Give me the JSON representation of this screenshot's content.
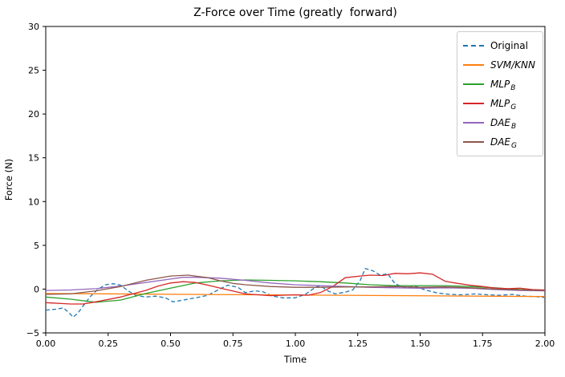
{
  "chart_data": {
    "type": "line",
    "title": "Z-Force over Time (greatly  forward)",
    "xlabel": "Time",
    "ylabel": "Force (N)",
    "xlim": [
      0,
      2
    ],
    "ylim": [
      -5,
      30
    ],
    "grid": false,
    "legend_position": "upper right",
    "xtick_values": [
      0,
      0.25,
      0.5,
      0.75,
      1.0,
      1.25,
      1.5,
      1.75,
      2.0
    ],
    "xtick_labels": [
      "0.00",
      "0.25",
      "0.50",
      "0.75",
      "1.00",
      "1.25",
      "1.50",
      "1.75",
      "2.00"
    ],
    "ytick_values": [
      -5,
      0,
      5,
      10,
      15,
      20,
      25,
      30
    ],
    "ytick_labels": [
      "−5",
      "0",
      "5",
      "10",
      "15",
      "20",
      "25",
      "30"
    ],
    "series": [
      {
        "name": "Original",
        "label": "Original",
        "sub": "",
        "italic": false,
        "color": "#1f77b4",
        "dash": true,
        "x": [
          0,
          0.04,
          0.07,
          0.09,
          0.11,
          0.13,
          0.15,
          0.18,
          0.21,
          0.24,
          0.27,
          0.3,
          0.33,
          0.36,
          0.4,
          0.44,
          0.48,
          0.51,
          0.55,
          0.6,
          0.65,
          0.7,
          0.73,
          0.77,
          0.8,
          0.84,
          0.87,
          0.91,
          0.95,
          1.0,
          1.04,
          1.08,
          1.1,
          1.13,
          1.16,
          1.2,
          1.23,
          1.26,
          1.28,
          1.31,
          1.34,
          1.37,
          1.4,
          1.44,
          1.48,
          1.52,
          1.57,
          1.62,
          1.67,
          1.72,
          1.77,
          1.82,
          1.87,
          1.92,
          1.96,
          2.0
        ],
        "y": [
          -2.4,
          -2.3,
          -2.15,
          -2.6,
          -3.2,
          -2.7,
          -1.9,
          -0.8,
          0.0,
          0.5,
          0.62,
          0.45,
          -0.2,
          -0.7,
          -0.9,
          -0.8,
          -1.0,
          -1.45,
          -1.25,
          -1.0,
          -0.7,
          0.05,
          0.45,
          0.2,
          -0.4,
          -0.2,
          -0.3,
          -0.8,
          -1.0,
          -1.0,
          -0.6,
          0.2,
          0.4,
          -0.2,
          -0.55,
          -0.35,
          -0.1,
          1.0,
          2.35,
          2.1,
          1.6,
          1.75,
          0.6,
          0.15,
          0.35,
          -0.1,
          -0.45,
          -0.6,
          -0.65,
          -0.55,
          -0.65,
          -0.7,
          -0.6,
          -0.8,
          -0.85,
          -0.95
        ]
      },
      {
        "name": "SVM/KNN",
        "label": "SVM/KNN",
        "sub": "",
        "italic": true,
        "color": "#ff7f0e",
        "dash": false,
        "x": [
          0,
          2
        ],
        "y": [
          -0.5,
          -0.85
        ]
      },
      {
        "name": "MLP_B",
        "label": "MLP",
        "sub": "B",
        "italic": true,
        "color": "#2ca02c",
        "dash": false,
        "x": [
          0,
          0.1,
          0.2,
          0.3,
          0.4,
          0.5,
          0.6,
          0.7,
          0.8,
          0.9,
          1.0,
          1.1,
          1.2,
          1.3,
          1.4,
          1.5,
          1.6,
          1.7,
          1.8,
          1.9,
          2.0
        ],
        "y": [
          -0.9,
          -1.15,
          -1.5,
          -1.25,
          -0.5,
          0.1,
          0.7,
          0.95,
          1.05,
          1.0,
          0.95,
          0.85,
          0.7,
          0.5,
          0.4,
          0.4,
          0.4,
          0.3,
          0.15,
          -0.05,
          -0.15
        ]
      },
      {
        "name": "MLP_G",
        "label": "MLP",
        "sub": "G",
        "italic": true,
        "color": "#d62728",
        "dash": false,
        "x": [
          0,
          0.1,
          0.15,
          0.2,
          0.3,
          0.4,
          0.45,
          0.5,
          0.55,
          0.6,
          0.65,
          0.7,
          0.8,
          0.9,
          1.0,
          1.05,
          1.1,
          1.15,
          1.2,
          1.26,
          1.3,
          1.35,
          1.4,
          1.45,
          1.5,
          1.55,
          1.6,
          1.65,
          1.7,
          1.75,
          1.8,
          1.85,
          1.9,
          1.95,
          2.0
        ],
        "y": [
          -1.55,
          -1.7,
          -1.7,
          -1.45,
          -0.9,
          -0.15,
          0.35,
          0.7,
          0.85,
          0.75,
          0.45,
          0.1,
          -0.55,
          -0.75,
          -0.65,
          -0.7,
          -0.4,
          0.3,
          1.3,
          1.5,
          1.6,
          1.55,
          1.8,
          1.75,
          1.85,
          1.7,
          0.9,
          0.65,
          0.45,
          0.3,
          0.12,
          0.05,
          0.1,
          -0.05,
          -0.1
        ]
      },
      {
        "name": "DAE_B",
        "label": "DAE",
        "sub": "B",
        "italic": true,
        "color": "#9467bd",
        "dash": false,
        "x": [
          0,
          0.1,
          0.2,
          0.3,
          0.4,
          0.5,
          0.55,
          0.6,
          0.7,
          0.8,
          0.9,
          1.0,
          1.1,
          1.2,
          1.3,
          1.4,
          1.5,
          1.6,
          1.7,
          1.8,
          1.9,
          2.0
        ],
        "y": [
          -0.15,
          -0.1,
          0.05,
          0.35,
          0.75,
          1.15,
          1.35,
          1.35,
          1.25,
          1.0,
          0.7,
          0.5,
          0.4,
          0.3,
          0.2,
          0.15,
          0.1,
          0.15,
          0.1,
          -0.05,
          -0.15,
          -0.2
        ]
      },
      {
        "name": "DAE_G",
        "label": "DAE",
        "sub": "G",
        "italic": true,
        "color": "#8c564b",
        "dash": false,
        "x": [
          0,
          0.1,
          0.2,
          0.3,
          0.4,
          0.5,
          0.57,
          0.65,
          0.7,
          0.75,
          0.8,
          0.9,
          1.0,
          1.1,
          1.2,
          1.3,
          1.4,
          1.5,
          1.6,
          1.7,
          1.8,
          1.9,
          2.0
        ],
        "y": [
          -0.6,
          -0.55,
          -0.2,
          0.3,
          1.0,
          1.5,
          1.6,
          1.3,
          0.95,
          0.65,
          0.5,
          0.3,
          0.2,
          0.2,
          0.25,
          0.25,
          0.3,
          0.2,
          0.25,
          0.15,
          0.0,
          -0.1,
          -0.15
        ]
      }
    ]
  }
}
